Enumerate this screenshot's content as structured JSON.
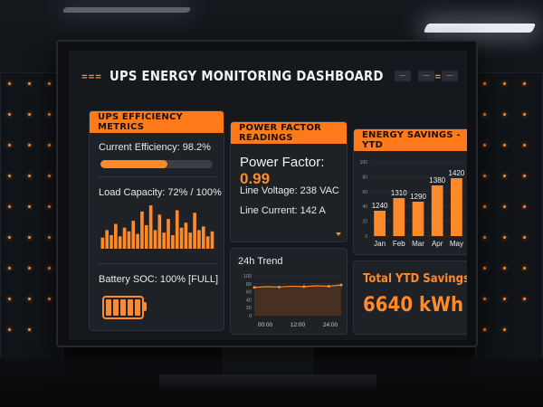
{
  "header": {
    "deco_left": "===",
    "deco_right": "===",
    "title": "UPS ENERGY MONITORING DASHBOARD",
    "window_controls": [
      "—",
      "—",
      "—"
    ]
  },
  "efficiency": {
    "heading": "UPS EFFICIENCY METRICS",
    "current_label": "Current Efficiency: 98.2%",
    "current_value": 98.2,
    "progress_fraction": 0.6,
    "load_label": "Load Capacity: 72% / 100%",
    "load_histogram": [
      18,
      30,
      22,
      40,
      20,
      34,
      28,
      45,
      24,
      60,
      38,
      70,
      30,
      55,
      26,
      48,
      22,
      62,
      34,
      42,
      26,
      58,
      30,
      36,
      20,
      28
    ],
    "battery_label": "Battery SOC: 100% [FULL]",
    "battery_icon": "battery-full-icon",
    "battery_cells": 5
  },
  "power_factor": {
    "heading": "POWER FACTOR READINGS",
    "pf_label": "Power Factor:",
    "pf_value": "0.99",
    "voltage": "Line Voltage: 238 VAC",
    "current": "Line Current: 142 A"
  },
  "trend": {
    "title": "24h Trend",
    "y_ticks": [
      "100",
      "80",
      "60",
      "40",
      "20",
      "0"
    ],
    "x_ticks": [
      "00:00",
      "12:00",
      "24:00"
    ],
    "values": [
      71,
      73,
      72,
      74,
      73,
      75,
      74,
      77
    ],
    "ylim": [
      0,
      100
    ]
  },
  "savings": {
    "heading": "ENERGY SAVINGS - YTD"
  },
  "total": {
    "label": "Total YTD Savings:",
    "value": "6640 kWh"
  },
  "colors": {
    "accent": "#ff8a2a",
    "panel": "#1e2227",
    "text": "#e9e9e9"
  },
  "chart_data": {
    "type": "bar",
    "categories": [
      "Jan",
      "Feb",
      "Mar",
      "Apr",
      "May"
    ],
    "values": [
      1240,
      1310,
      1290,
      1380,
      1420
    ],
    "data_labels": [
      "1240",
      "1310",
      "1290",
      "1380",
      "1420"
    ],
    "y_ticks": [
      "100",
      "80",
      "60",
      "40",
      "20",
      "0"
    ],
    "grid": true
  }
}
